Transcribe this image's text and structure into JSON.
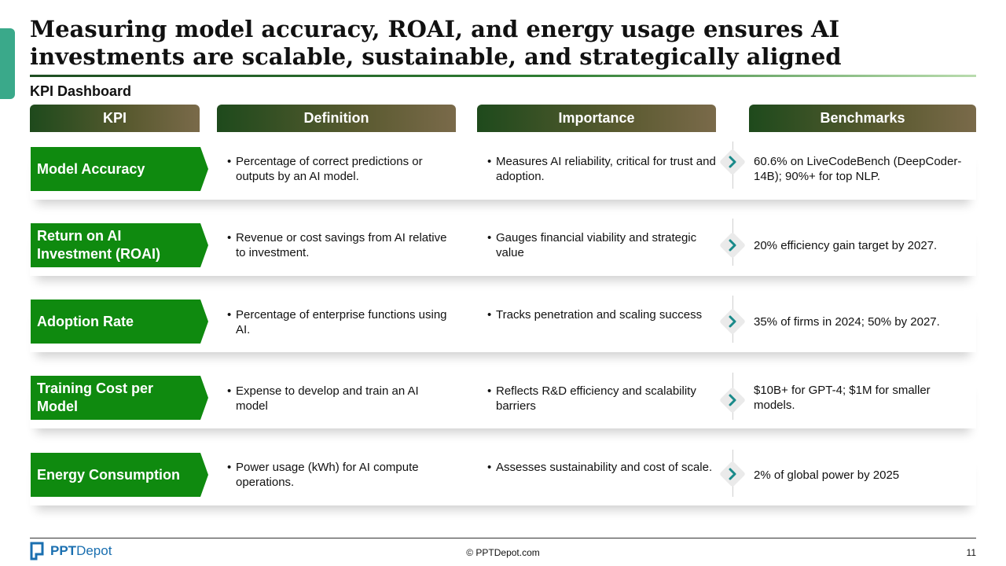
{
  "title": "Measuring model accuracy, ROAI, and energy usage ensures AI investments are scalable, sustainable, and strategically aligned",
  "subtitle": "KPI Dashboard",
  "columns": [
    "KPI",
    "Definition",
    "Importance",
    "Benchmarks"
  ],
  "rows": [
    {
      "kpi": "Model Accuracy",
      "definition": "Percentage of correct predictions or outputs by an AI model.",
      "importance": "Measures AI reliability, critical for trust and adoption.",
      "benchmark": "60.6% on LiveCodeBench (DeepCoder-14B); 90%+ for top NLP."
    },
    {
      "kpi": "Return on AI Investment (ROAI)",
      "definition": "Revenue or cost savings from AI relative to investment.",
      "importance": "Gauges financial viability and strategic value",
      "benchmark": "20% efficiency gain target by 2027."
    },
    {
      "kpi": "Adoption Rate",
      "definition": "Percentage of enterprise functions using AI.",
      "importance": "Tracks penetration and scaling success",
      "benchmark": "35% of firms in 2024; 50% by 2027."
    },
    {
      "kpi": "Training Cost per Model",
      "definition": "Expense to develop and train an AI model",
      "importance": "Reflects R&D efficiency and scalability barriers",
      "benchmark": "$10B+ for GPT-4; $1M for smaller models."
    },
    {
      "kpi": "Energy Consumption",
      "definition": "Power usage (kWh) for AI compute operations.",
      "importance": "Assesses sustainability and cost of scale.",
      "benchmark": "2% of global power by 2025"
    }
  ],
  "footer": {
    "logo_bold": "PPT",
    "logo_light": "Depot",
    "copyright": "© PPTDepot.com",
    "page_number": "11"
  },
  "icons": {
    "row_marker": "chevron-right-icon",
    "logo": "pptdepot-logo-icon"
  },
  "colors": {
    "kpi_fill": "#0f8a0f",
    "accent": "#3aa98a",
    "chevron": "#1a8a8a",
    "header_start": "#1e4a1c",
    "header_end": "#7a6a4a"
  }
}
